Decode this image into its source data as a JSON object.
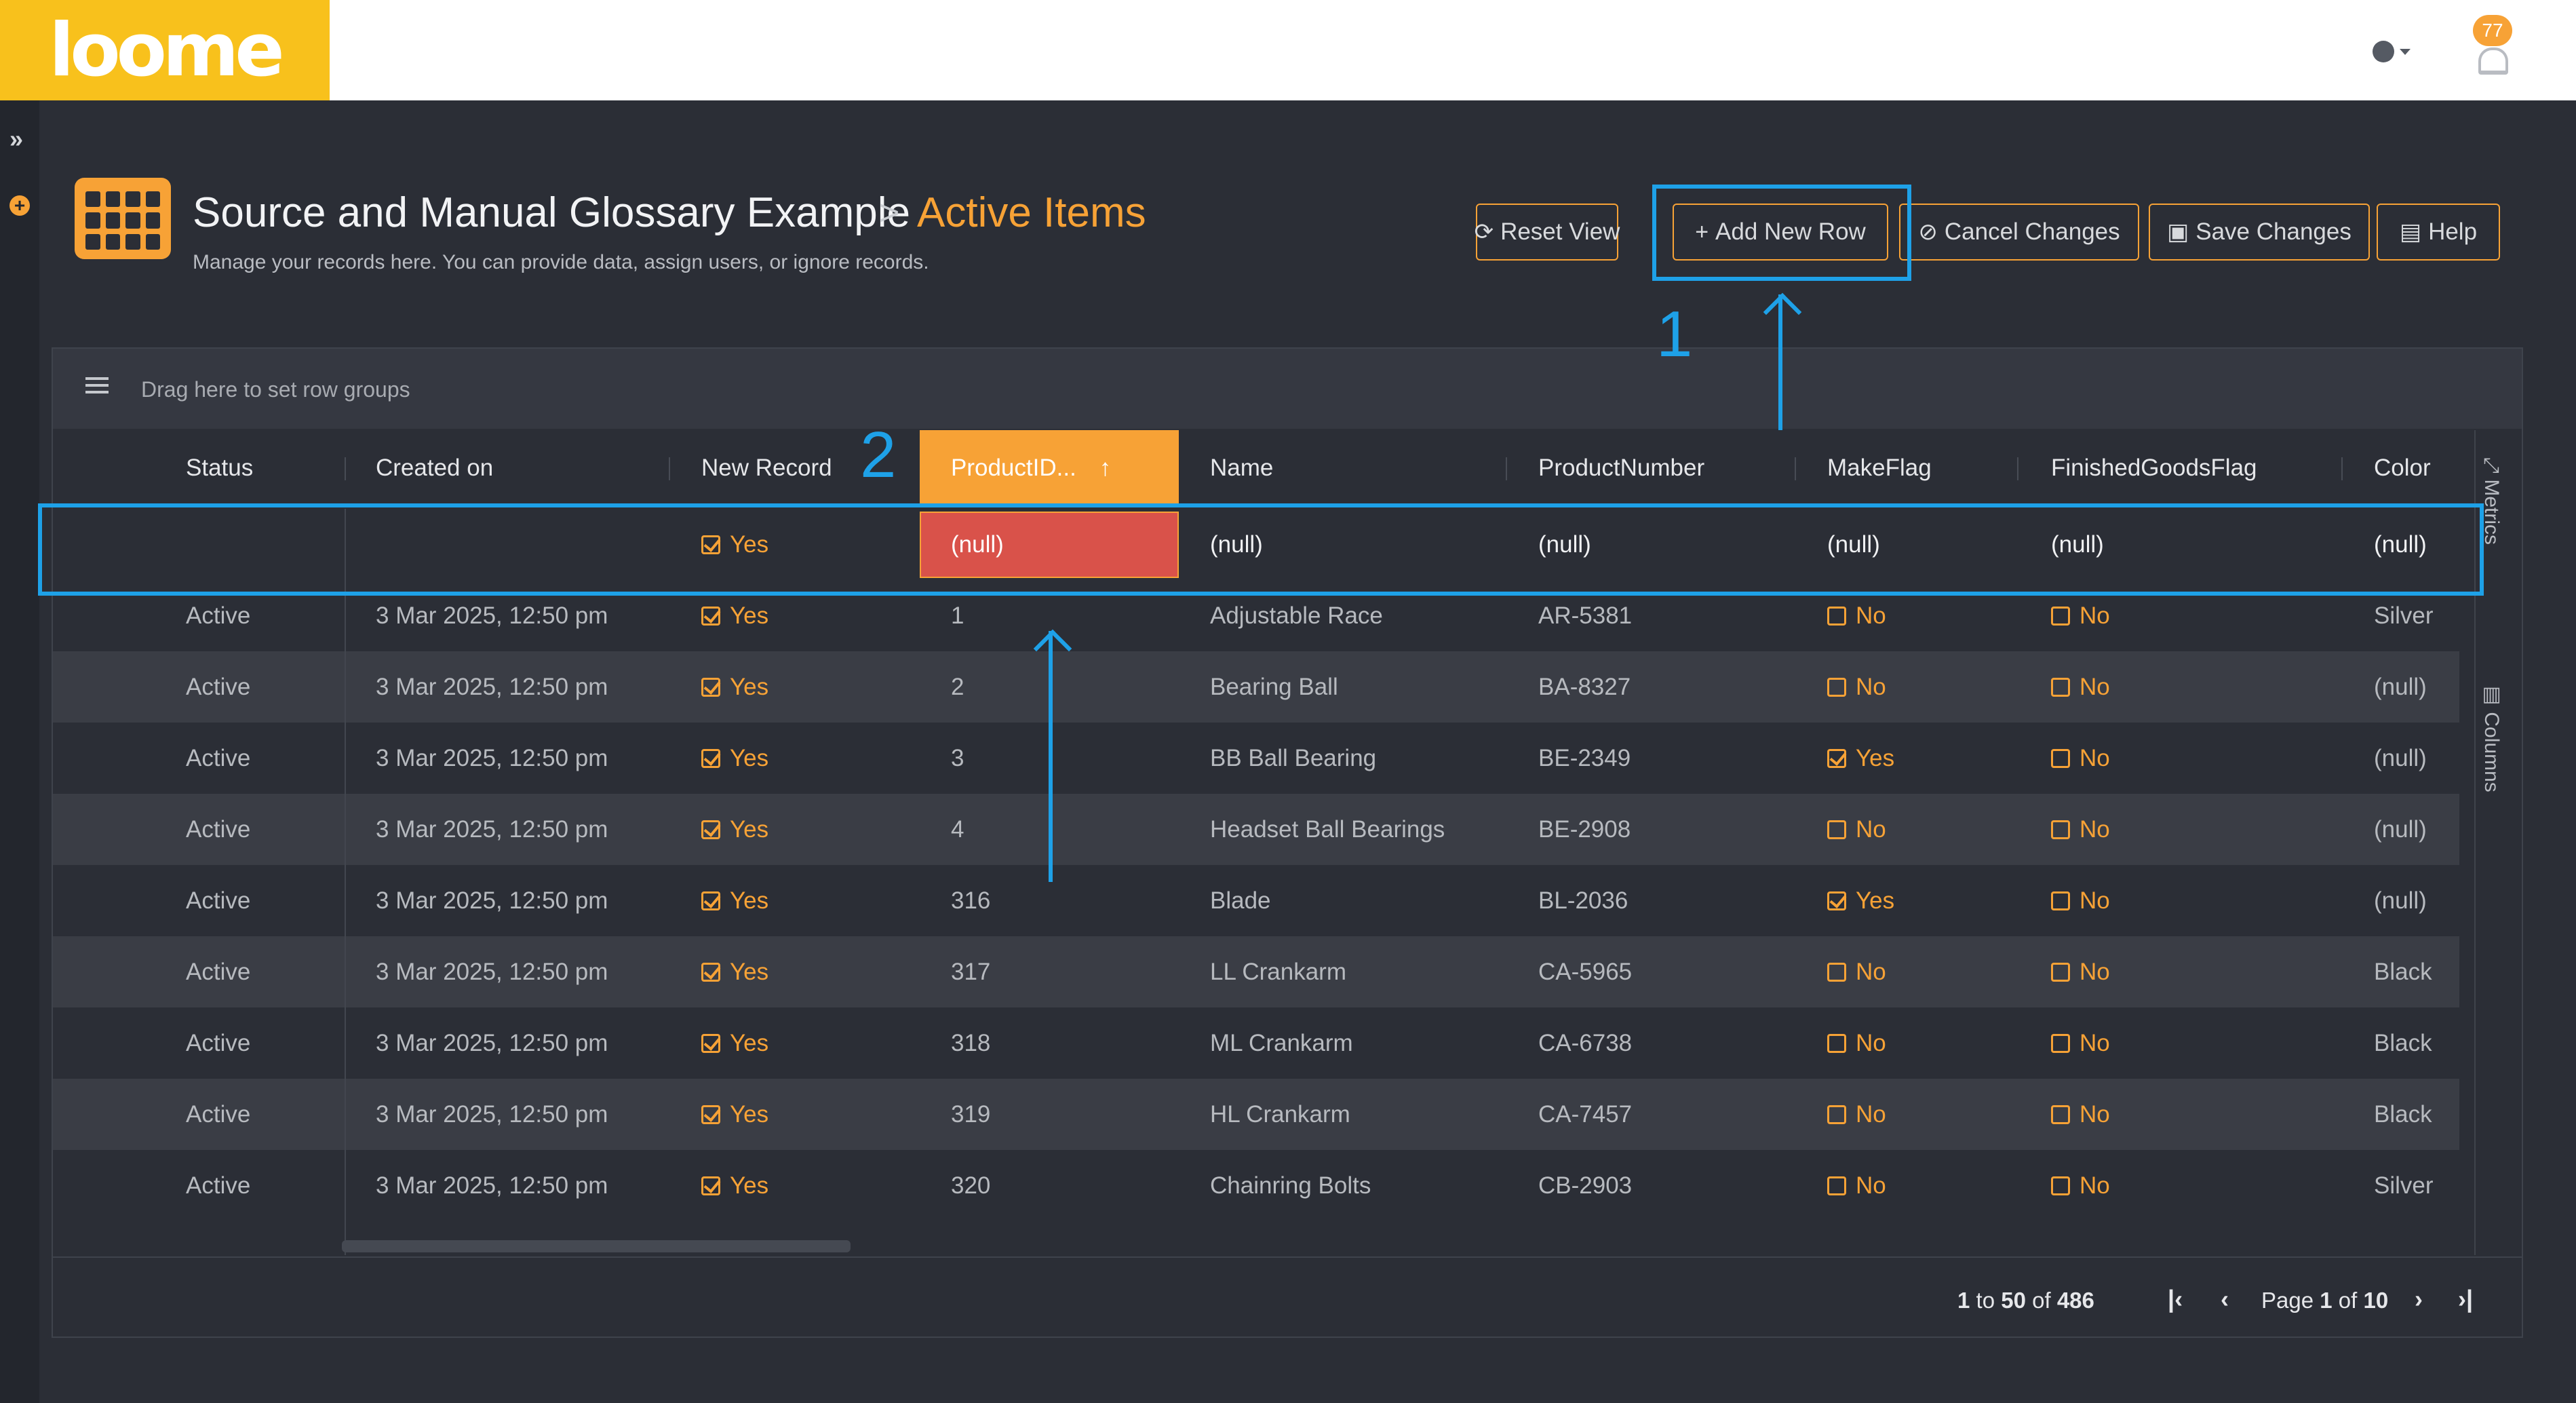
{
  "header": {
    "logo_text": "loome",
    "notification_count": "77"
  },
  "page": {
    "title": "Source and Manual Glossary Example",
    "breadcrumb_sep": ">",
    "current": "Active Items",
    "subtitle": "Manage your records here. You can provide data, assign users, or ignore records."
  },
  "toolbar": {
    "reset_view": "Reset View",
    "add_new_row": "Add New Row",
    "cancel_changes": "Cancel Changes",
    "save_changes": "Save Changes",
    "help": "Help"
  },
  "grid": {
    "group_hint": "Drag here to set row groups",
    "columns": [
      "Status",
      "Created on",
      "New Record",
      "ProductID...",
      "Name",
      "ProductNumber",
      "MakeFlag",
      "FinishedGoodsFlag",
      "Color"
    ],
    "new_row": {
      "new_record": "Yes",
      "product_id": "(null)",
      "name": "(null)",
      "product_number": "(null)",
      "make_flag": "(null)",
      "finished_goods_flag": "(null)",
      "color": "(null)"
    },
    "rows": [
      {
        "status": "Active",
        "created": "3 Mar 2025, 12:50 pm",
        "new_record": "Yes",
        "product_id": "1",
        "name": "Adjustable Race",
        "product_number": "AR-5381",
        "make_flag": "No",
        "make_on": false,
        "finished": "No",
        "color": "Silver"
      },
      {
        "status": "Active",
        "created": "3 Mar 2025, 12:50 pm",
        "new_record": "Yes",
        "product_id": "2",
        "name": "Bearing Ball",
        "product_number": "BA-8327",
        "make_flag": "No",
        "make_on": false,
        "finished": "No",
        "color": "(null)"
      },
      {
        "status": "Active",
        "created": "3 Mar 2025, 12:50 pm",
        "new_record": "Yes",
        "product_id": "3",
        "name": "BB Ball Bearing",
        "product_number": "BE-2349",
        "make_flag": "Yes",
        "make_on": true,
        "finished": "No",
        "color": "(null)"
      },
      {
        "status": "Active",
        "created": "3 Mar 2025, 12:50 pm",
        "new_record": "Yes",
        "product_id": "4",
        "name": "Headset Ball Bearings",
        "product_number": "BE-2908",
        "make_flag": "No",
        "make_on": false,
        "finished": "No",
        "color": "(null)"
      },
      {
        "status": "Active",
        "created": "3 Mar 2025, 12:50 pm",
        "new_record": "Yes",
        "product_id": "316",
        "name": "Blade",
        "product_number": "BL-2036",
        "make_flag": "Yes",
        "make_on": true,
        "finished": "No",
        "color": "(null)"
      },
      {
        "status": "Active",
        "created": "3 Mar 2025, 12:50 pm",
        "new_record": "Yes",
        "product_id": "317",
        "name": "LL Crankarm",
        "product_number": "CA-5965",
        "make_flag": "No",
        "make_on": false,
        "finished": "No",
        "color": "Black"
      },
      {
        "status": "Active",
        "created": "3 Mar 2025, 12:50 pm",
        "new_record": "Yes",
        "product_id": "318",
        "name": "ML Crankarm",
        "product_number": "CA-6738",
        "make_flag": "No",
        "make_on": false,
        "finished": "No",
        "color": "Black"
      },
      {
        "status": "Active",
        "created": "3 Mar 2025, 12:50 pm",
        "new_record": "Yes",
        "product_id": "319",
        "name": "HL Crankarm",
        "product_number": "CA-7457",
        "make_flag": "No",
        "make_on": false,
        "finished": "No",
        "color": "Black"
      },
      {
        "status": "Active",
        "created": "3 Mar 2025, 12:50 pm",
        "new_record": "Yes",
        "product_id": "320",
        "name": "Chainring Bolts",
        "product_number": "CB-2903",
        "make_flag": "No",
        "make_on": false,
        "finished": "No",
        "color": "Silver"
      }
    ],
    "side_tabs": [
      "Metrics",
      "Columns"
    ]
  },
  "pagination": {
    "range_from": "1",
    "range_to": "50",
    "total": "486",
    "to_word": "to",
    "of_word": "of",
    "page_word": "Page",
    "page_current": "1",
    "page_total": "10"
  },
  "annotations": {
    "label_1": "1",
    "label_2": "2"
  },
  "colors": {
    "accent": "#f7a236",
    "annotation": "#1ea1e8",
    "null_cell": "#d9524a"
  }
}
